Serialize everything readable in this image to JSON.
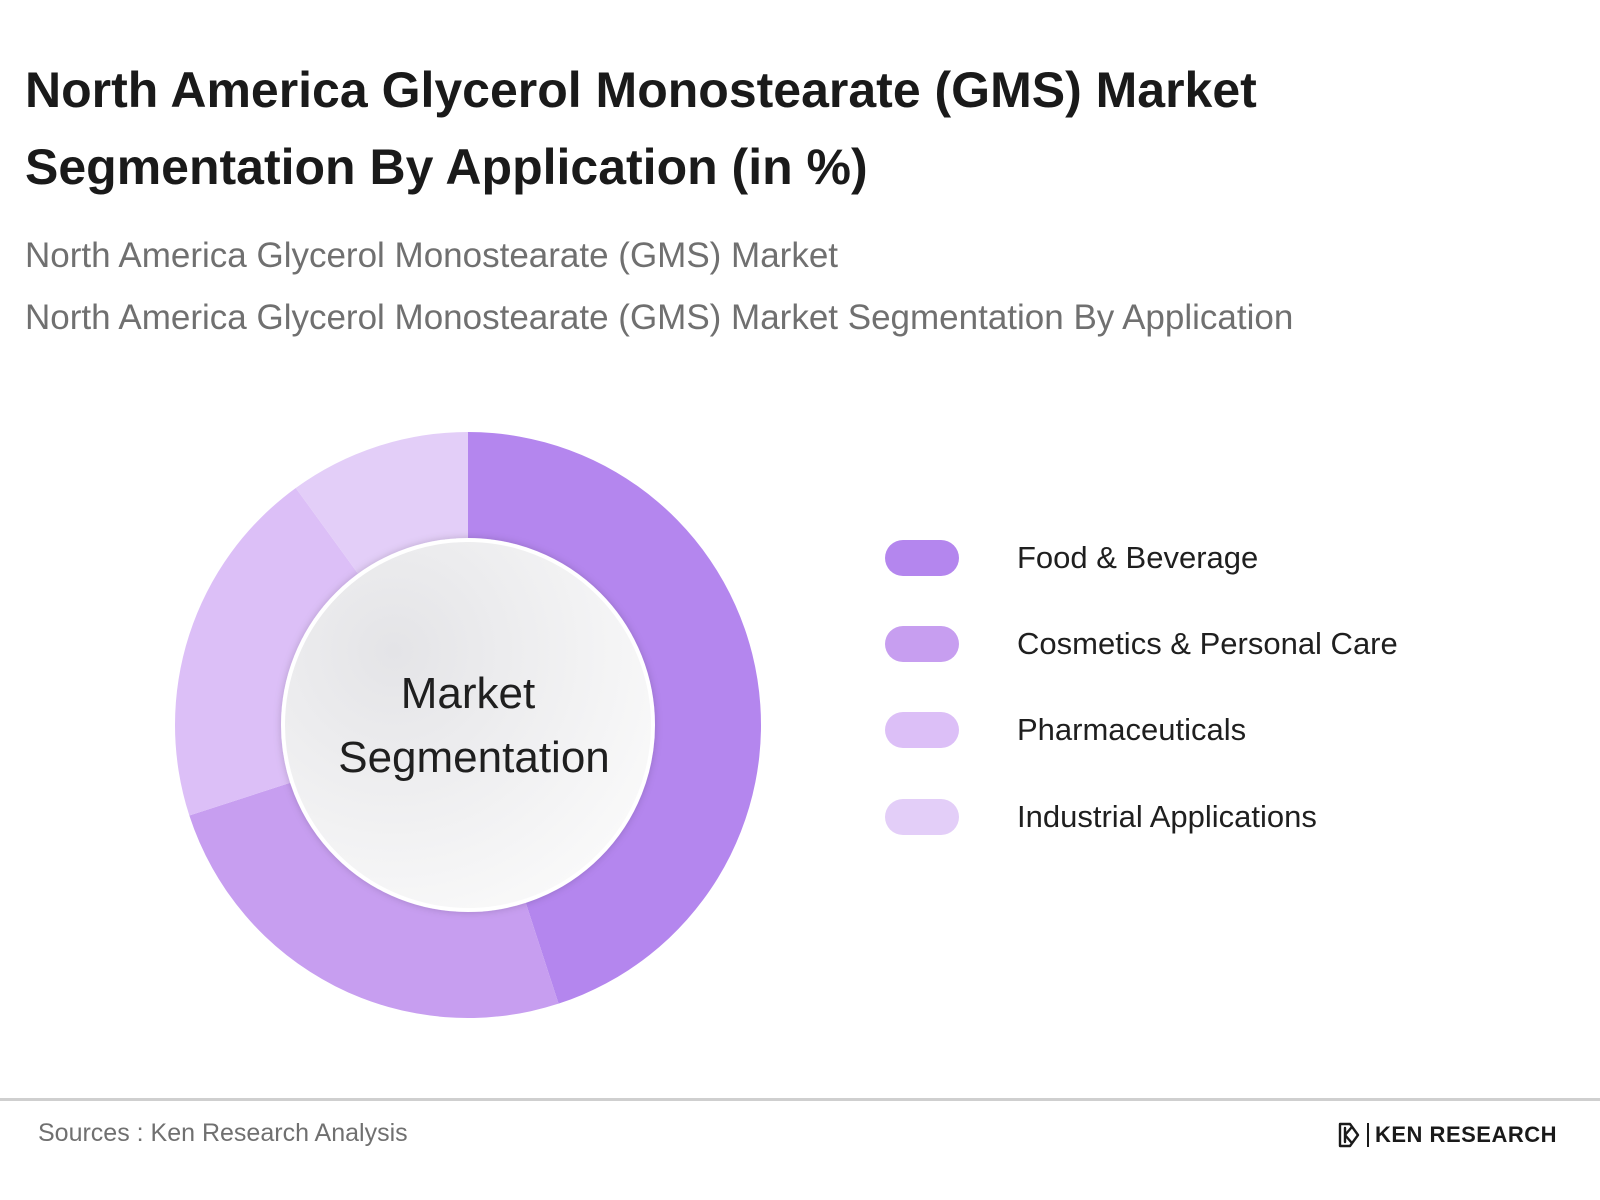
{
  "title": "North America Glycerol Monostearate (GMS) Market Segmentation By Application (in %)",
  "subtitle_1": "North America Glycerol Monostearate (GMS) Market",
  "subtitle_2": "North America Glycerol Monostearate (GMS) Market Segmentation By Application",
  "center_label": [
    "Market",
    "Segmentation"
  ],
  "chart_data": {
    "type": "pie",
    "variant": "donut",
    "title": "North America Glycerol Monostearate (GMS) Market Segmentation By Application (in %)",
    "categories": [
      "Food & Beverage",
      "Cosmetics & Personal Care",
      "Pharmaceuticals",
      "Industrial Applications"
    ],
    "values": [
      45,
      25,
      20,
      10
    ],
    "colors": [
      "#b486ee",
      "#c79ef0",
      "#dcbff7",
      "#e3cef8"
    ],
    "legend_position": "right"
  },
  "footer": {
    "source": "Sources : Ken Research Analysis",
    "brand": "KEN RESEARCH"
  }
}
